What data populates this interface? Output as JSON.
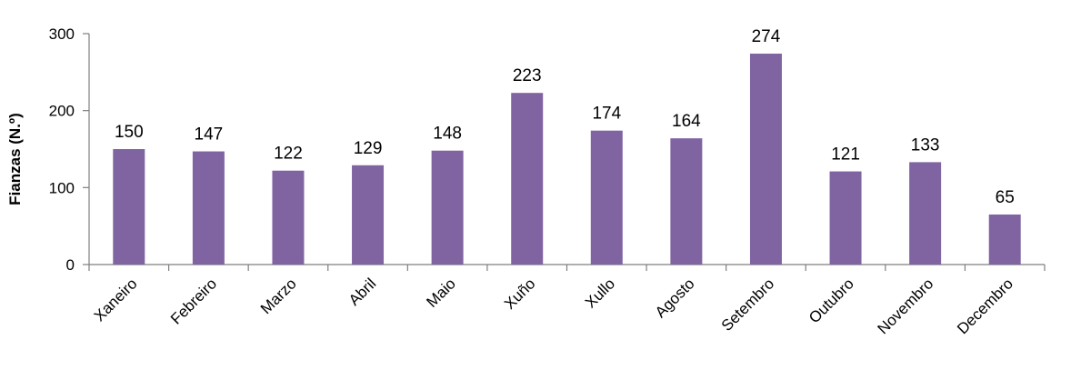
{
  "chart_data": {
    "type": "bar",
    "title": "",
    "xlabel": "",
    "ylabel": "Fianzas (N.º)",
    "ylim": [
      0,
      300
    ],
    "yticks": [
      0,
      100,
      200,
      300
    ],
    "grid": false,
    "categories": [
      "Xaneiro",
      "Febreiro",
      "Marzo",
      "Abril",
      "Maio",
      "Xuño",
      "Xullo",
      "Agosto",
      "Setembro",
      "Outubro",
      "Novembro",
      "Decembro"
    ],
    "values": [
      150,
      147,
      122,
      129,
      148,
      223,
      174,
      164,
      274,
      121,
      133,
      65
    ],
    "bar_color": "#8064a2",
    "axis_color": "#7f7f7f"
  }
}
